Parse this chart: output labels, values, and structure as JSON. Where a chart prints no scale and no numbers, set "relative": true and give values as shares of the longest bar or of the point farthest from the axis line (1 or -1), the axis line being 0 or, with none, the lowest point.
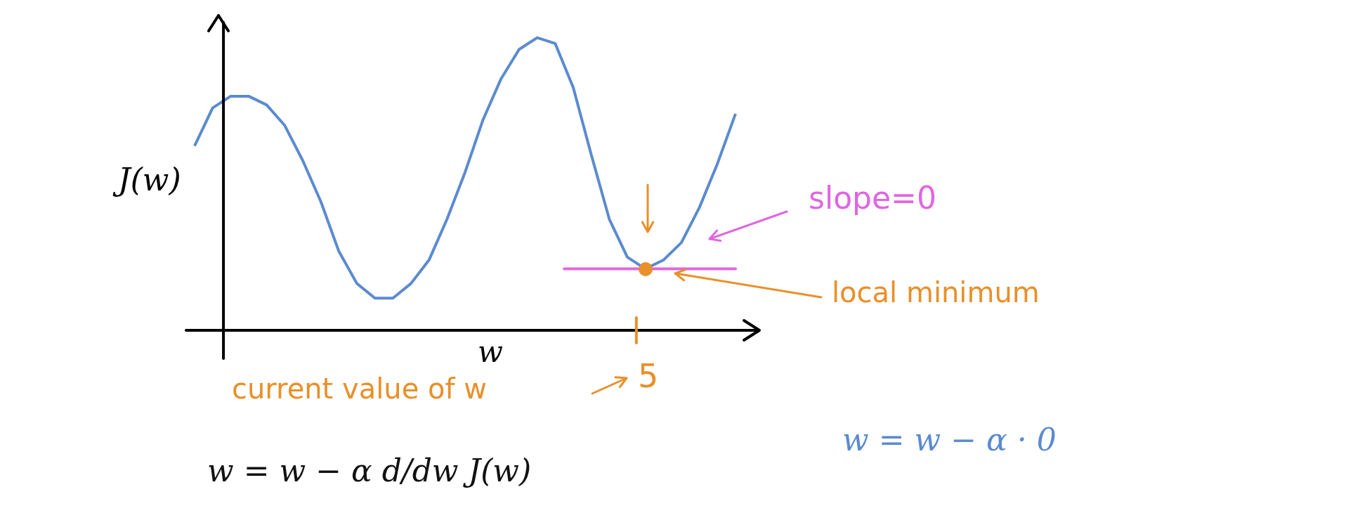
{
  "chart_data": {
    "type": "line",
    "relative": true,
    "xlabel": "w",
    "ylabel": "J(w)",
    "categories": [
      null,
      null,
      null,
      null,
      null,
      null,
      null,
      null,
      null,
      null,
      null,
      null,
      null,
      null,
      null,
      null,
      null,
      null,
      null,
      null,
      null,
      null,
      null,
      null,
      null,
      null,
      null,
      null,
      null,
      null,
      null
    ],
    "series": [
      {
        "color": "#5b8bd0",
        "values": [
          0.63,
          0.76,
          0.8,
          0.8,
          0.77,
          0.7,
          0.58,
          0.44,
          0.27,
          0.16,
          0.11,
          0.11,
          0.16,
          0.24,
          0.38,
          0.54,
          0.72,
          0.86,
          0.96,
          1,
          0.98,
          0.83,
          0.6,
          0.38,
          0.25,
          0.21,
          0.24,
          0.3,
          0.42,
          0.57,
          0.74
        ]
      }
    ],
    "ref_lines": [
      {
        "axis": "y",
        "value": 0.21,
        "label": "slope=0",
        "color": "#e066e0"
      }
    ],
    "annotations": [
      "local minimum",
      "5",
      "current value of w",
      "w = w − α d/dw J(w)",
      "w = w − α · 0"
    ],
    "legend": false,
    "marker": "none",
    "line_style": "solid"
  }
}
